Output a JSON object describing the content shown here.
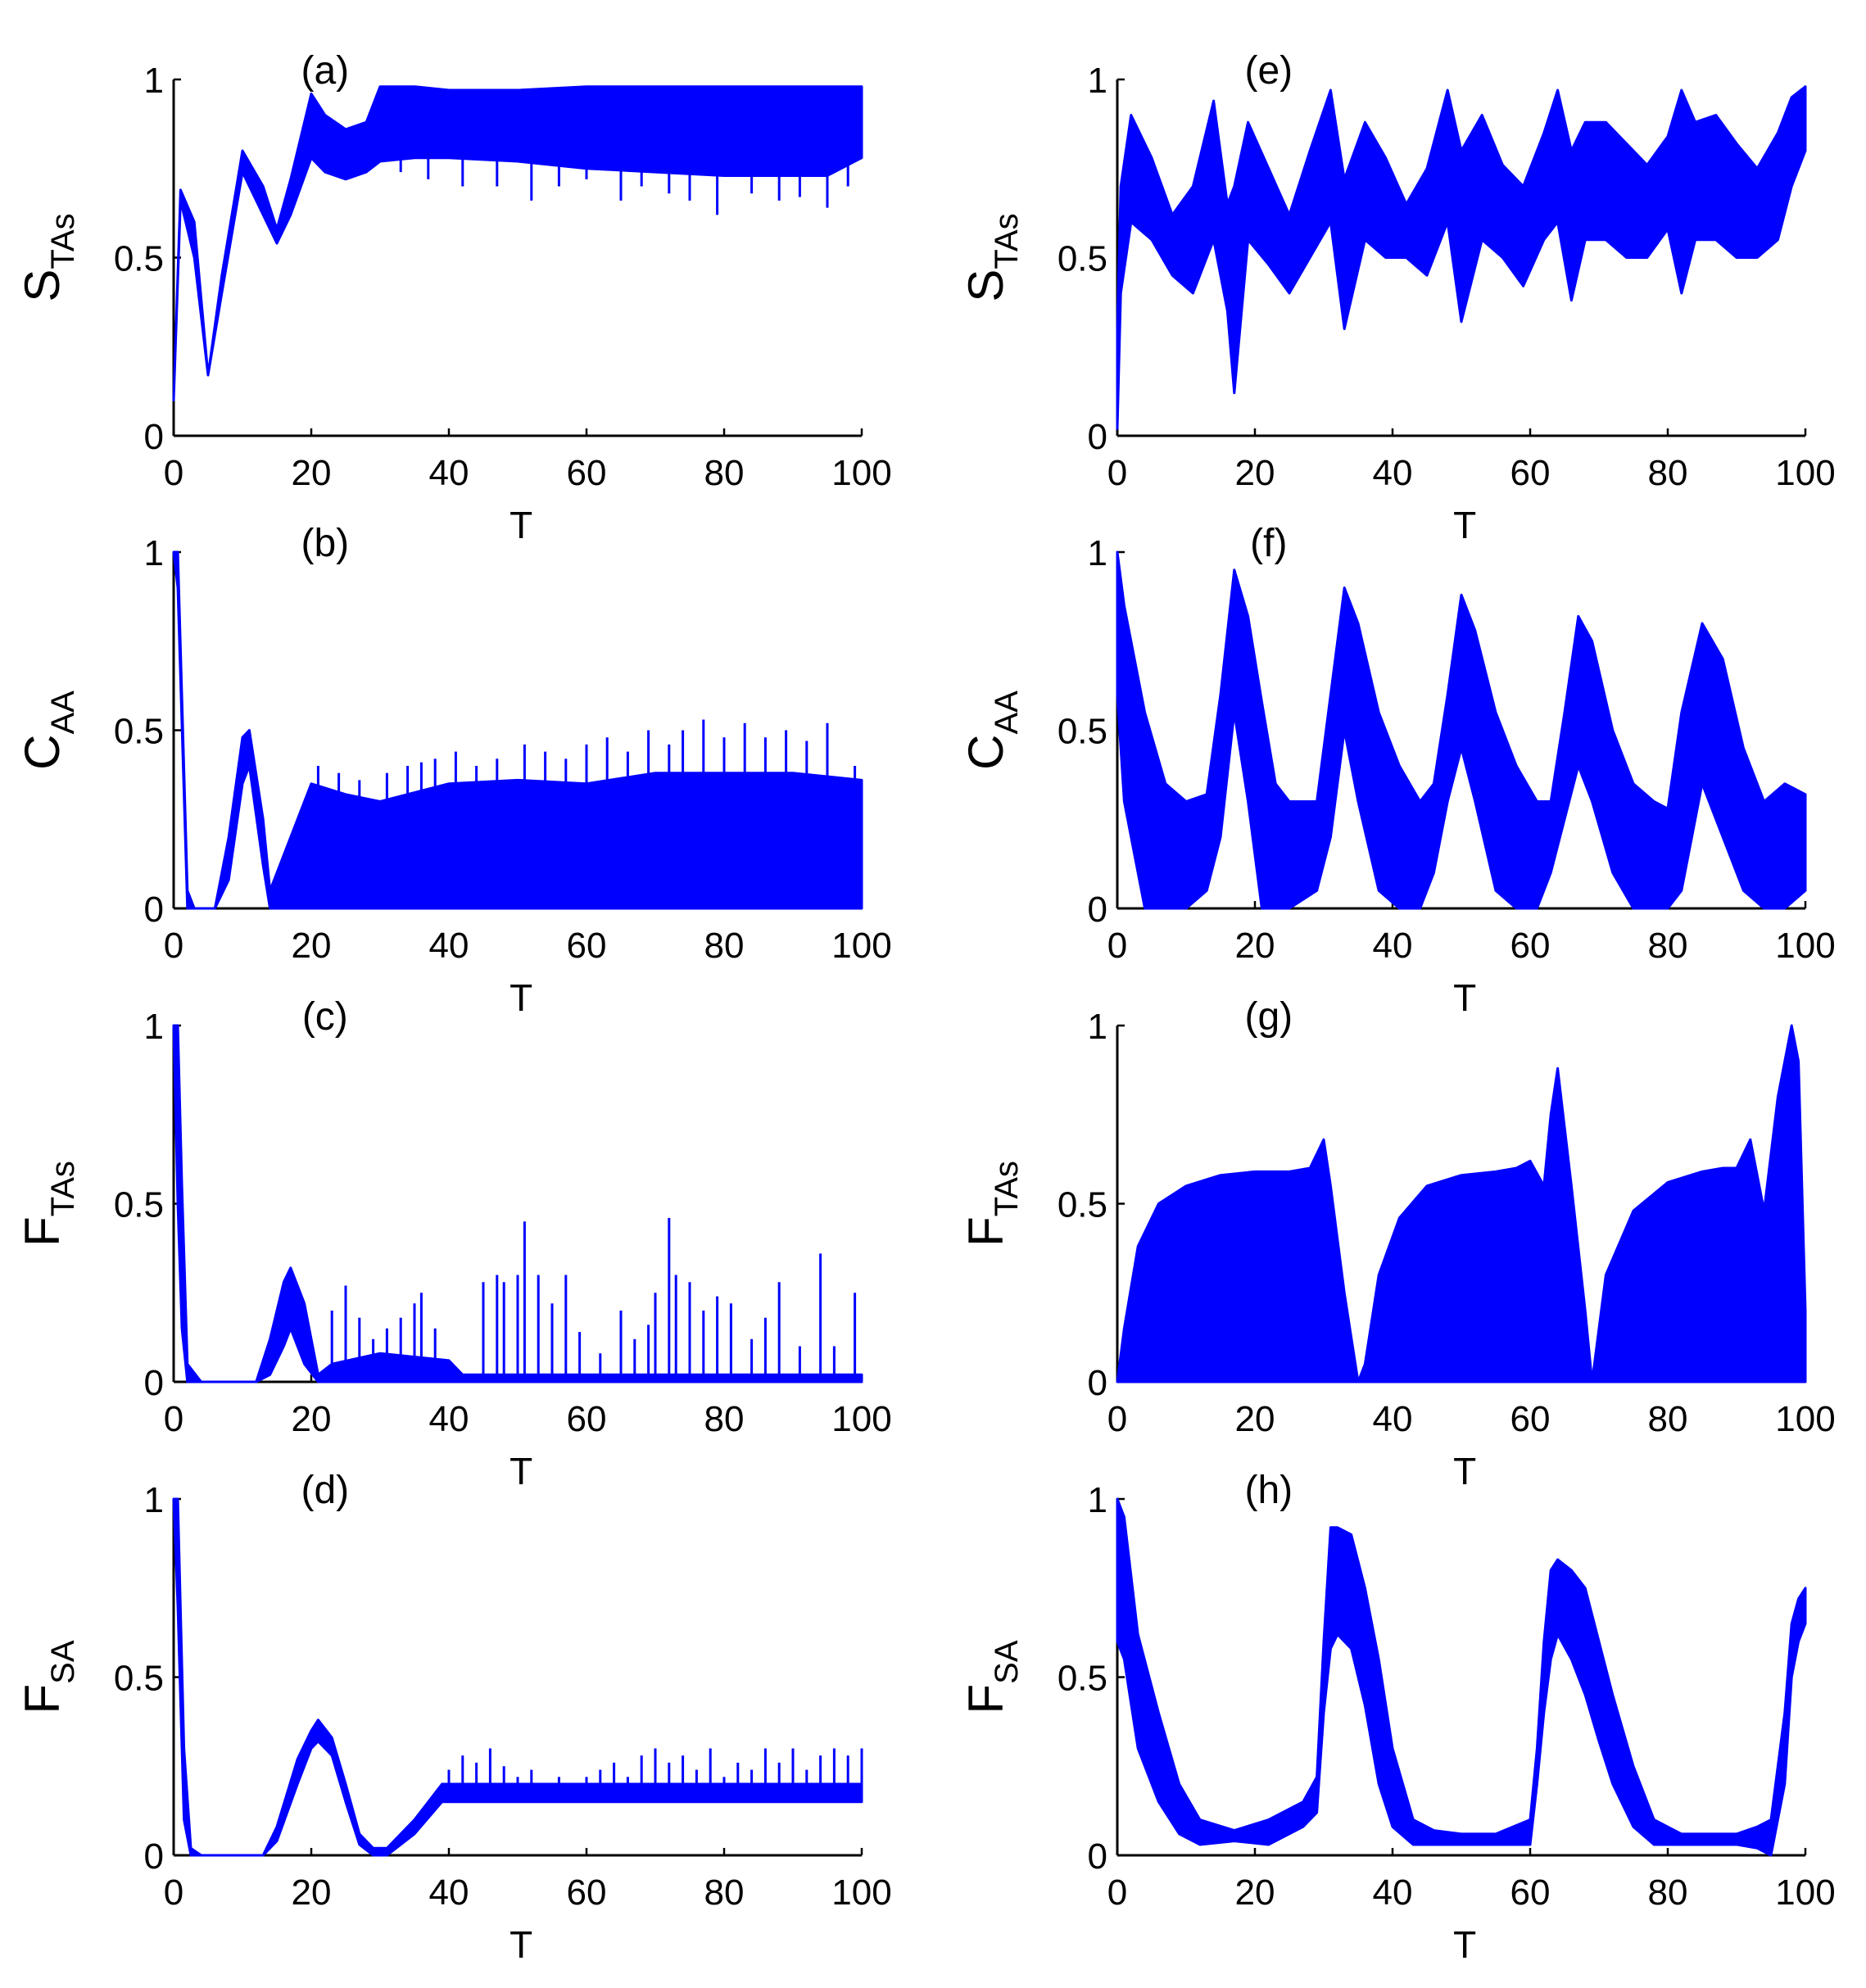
{
  "chart_data": [
    {
      "panel": "(a)",
      "type": "line",
      "ylabel": "S",
      "ylabel_sub": "TAs",
      "xlabel": "T",
      "xlim": [
        0,
        100
      ],
      "ylim": [
        0,
        1
      ],
      "xticks": [
        "0",
        "20",
        "40",
        "60",
        "80",
        "100"
      ],
      "yticks": [
        "0",
        "0.5",
        "1"
      ],
      "color": "#0000ff",
      "band": {
        "x": [
          0,
          1,
          3,
          5,
          7,
          10,
          13,
          15,
          17,
          20,
          22,
          25,
          28,
          30,
          35,
          40,
          50,
          60,
          70,
          80,
          90,
          95,
          100
        ],
        "lower": [
          0.1,
          0.66,
          0.5,
          0.17,
          0.4,
          0.74,
          0.62,
          0.54,
          0.62,
          0.78,
          0.74,
          0.72,
          0.74,
          0.77,
          0.78,
          0.78,
          0.77,
          0.75,
          0.74,
          0.73,
          0.73,
          0.73,
          0.78
        ],
        "upper": [
          0.1,
          0.69,
          0.6,
          0.17,
          0.45,
          0.8,
          0.7,
          0.58,
          0.72,
          0.96,
          0.9,
          0.86,
          0.88,
          0.98,
          0.98,
          0.97,
          0.97,
          0.98,
          0.98,
          0.98,
          0.98,
          0.98,
          0.98
        ]
      },
      "spikes": {
        "x": [
          33,
          37,
          42,
          47,
          52,
          56,
          60,
          65,
          68,
          72,
          75,
          79,
          84,
          88,
          91,
          95,
          98
        ],
        "y": [
          0.74,
          0.72,
          0.7,
          0.7,
          0.66,
          0.7,
          0.72,
          0.66,
          0.7,
          0.68,
          0.66,
          0.62,
          0.68,
          0.66,
          0.67,
          0.64,
          0.7
        ]
      }
    },
    {
      "panel": "(b)",
      "type": "line",
      "ylabel": "C",
      "ylabel_sub": "AA",
      "xlabel": "T",
      "xlim": [
        0,
        100
      ],
      "ylim": [
        0,
        1
      ],
      "xticks": [
        "0",
        "20",
        "40",
        "60",
        "80",
        "100"
      ],
      "yticks": [
        "0",
        "0.5",
        "1"
      ],
      "color": "#0000ff",
      "band": {
        "x": [
          0,
          0.6,
          2,
          3,
          6,
          8,
          10,
          11,
          13,
          14,
          16,
          20,
          25,
          30,
          40,
          50,
          60,
          70,
          80,
          90,
          100
        ],
        "lower": [
          1.0,
          0.9,
          0.0,
          0.0,
          0.0,
          0.08,
          0.35,
          0.4,
          0.12,
          0.0,
          0.0,
          0.0,
          0.0,
          0.0,
          0.0,
          0.0,
          0.0,
          0.0,
          0.0,
          0.0,
          0.0
        ],
        "upper": [
          1.0,
          1.0,
          0.05,
          0.0,
          0.0,
          0.2,
          0.48,
          0.5,
          0.25,
          0.05,
          0.15,
          0.35,
          0.32,
          0.3,
          0.35,
          0.36,
          0.35,
          0.38,
          0.38,
          0.38,
          0.36
        ]
      },
      "spikes": {
        "x": [
          21,
          24,
          27,
          31,
          34,
          36,
          38,
          41,
          44,
          47,
          51,
          54,
          57,
          60,
          63,
          66,
          69,
          72,
          74,
          77,
          80,
          83,
          86,
          89,
          92,
          95,
          99
        ],
        "y": [
          0.4,
          0.38,
          0.36,
          0.38,
          0.4,
          0.41,
          0.42,
          0.44,
          0.4,
          0.42,
          0.46,
          0.44,
          0.42,
          0.46,
          0.48,
          0.44,
          0.5,
          0.46,
          0.5,
          0.53,
          0.48,
          0.52,
          0.48,
          0.5,
          0.47,
          0.52,
          0.4
        ]
      }
    },
    {
      "panel": "(c)",
      "type": "line",
      "ylabel": "F",
      "ylabel_sub": "TAs",
      "xlabel": "T",
      "xlim": [
        0,
        100
      ],
      "ylim": [
        0,
        1
      ],
      "xticks": [
        "0",
        "20",
        "40",
        "60",
        "80",
        "100"
      ],
      "yticks": [
        "0",
        "0.5",
        "1"
      ],
      "color": "#0000ff",
      "band": {
        "x": [
          0,
          0.6,
          1.2,
          2,
          4,
          12,
          14,
          16,
          17,
          19,
          21,
          23,
          30,
          40,
          42,
          100
        ],
        "lower": [
          1.0,
          0.5,
          0.15,
          0.0,
          0.0,
          0.0,
          0.02,
          0.1,
          0.15,
          0.05,
          0.0,
          0.0,
          0.0,
          0.0,
          0.0,
          0.0
        ],
        "upper": [
          1.0,
          1.0,
          0.55,
          0.05,
          0.0,
          0.0,
          0.12,
          0.28,
          0.32,
          0.22,
          0.02,
          0.05,
          0.08,
          0.06,
          0.02,
          0.02
        ]
      },
      "spikes": {
        "x": [
          23,
          25,
          27,
          29,
          31,
          33,
          35,
          36,
          38,
          45,
          47,
          48,
          50,
          51,
          53,
          55,
          57,
          59,
          62,
          65,
          67,
          69,
          70,
          72,
          73,
          75,
          77,
          79,
          81,
          84,
          86,
          88,
          91,
          94,
          96,
          99
        ],
        "y": [
          0.2,
          0.27,
          0.18,
          0.12,
          0.15,
          0.18,
          0.22,
          0.25,
          0.15,
          0.28,
          0.3,
          0.28,
          0.3,
          0.45,
          0.3,
          0.22,
          0.3,
          0.14,
          0.08,
          0.2,
          0.12,
          0.16,
          0.25,
          0.46,
          0.3,
          0.28,
          0.2,
          0.24,
          0.22,
          0.12,
          0.18,
          0.28,
          0.1,
          0.36,
          0.1,
          0.25
        ]
      }
    },
    {
      "panel": "(d)",
      "type": "line",
      "ylabel": "F",
      "ylabel_sub": "SA",
      "xlabel": "T",
      "xlim": [
        0,
        100
      ],
      "ylim": [
        0,
        1
      ],
      "xticks": [
        "0",
        "20",
        "40",
        "60",
        "80",
        "100"
      ],
      "yticks": [
        "0",
        "0.5",
        "1"
      ],
      "color": "#0000ff",
      "band": {
        "x": [
          0,
          0.6,
          1.5,
          2.5,
          4,
          13,
          15,
          18,
          20,
          21,
          23,
          25,
          27,
          29,
          31,
          35,
          39,
          100
        ],
        "lower": [
          1.0,
          0.7,
          0.1,
          0.0,
          0.0,
          0.0,
          0.04,
          0.2,
          0.3,
          0.32,
          0.28,
          0.15,
          0.03,
          0.0,
          0.0,
          0.06,
          0.15,
          0.15
        ],
        "upper": [
          1.0,
          1.0,
          0.3,
          0.02,
          0.0,
          0.0,
          0.08,
          0.27,
          0.35,
          0.38,
          0.33,
          0.2,
          0.06,
          0.02,
          0.02,
          0.1,
          0.2,
          0.2
        ]
      },
      "spikes": {
        "x": [
          40,
          42,
          44,
          46,
          48,
          50,
          52,
          54,
          56,
          58,
          60,
          62,
          64,
          66,
          68,
          70,
          72,
          74,
          76,
          78,
          80,
          82,
          84,
          86,
          88,
          90,
          92,
          94,
          96,
          98,
          100
        ],
        "y": [
          0.24,
          0.28,
          0.26,
          0.3,
          0.25,
          0.22,
          0.24,
          0.2,
          0.22,
          0.18,
          0.22,
          0.24,
          0.26,
          0.22,
          0.28,
          0.3,
          0.26,
          0.28,
          0.24,
          0.3,
          0.22,
          0.26,
          0.24,
          0.3,
          0.26,
          0.3,
          0.24,
          0.28,
          0.3,
          0.28,
          0.3
        ]
      }
    },
    {
      "panel": "(e)",
      "type": "line",
      "ylabel": "S",
      "ylabel_sub": "TAs",
      "xlabel": "T",
      "xlim": [
        0,
        100
      ],
      "ylim": [
        0,
        1
      ],
      "xticks": [
        "0",
        "20",
        "40",
        "60",
        "80",
        "100"
      ],
      "yticks": [
        "0",
        "0.5",
        "1"
      ],
      "color": "#0000ff",
      "band": {
        "x": [
          0,
          0.5,
          2,
          5,
          8,
          11,
          14,
          16,
          17,
          19,
          22,
          25,
          28,
          31,
          33,
          36,
          39,
          42,
          45,
          48,
          50,
          53,
          56,
          59,
          62,
          64,
          66,
          68,
          71,
          74,
          77,
          80,
          82,
          84,
          87,
          90,
          93,
          96,
          98,
          100
        ],
        "lower": [
          0.02,
          0.4,
          0.6,
          0.55,
          0.45,
          0.4,
          0.55,
          0.35,
          0.12,
          0.55,
          0.48,
          0.4,
          0.5,
          0.6,
          0.3,
          0.55,
          0.5,
          0.5,
          0.45,
          0.6,
          0.32,
          0.55,
          0.5,
          0.42,
          0.55,
          0.6,
          0.38,
          0.55,
          0.55,
          0.5,
          0.5,
          0.58,
          0.4,
          0.55,
          0.55,
          0.5,
          0.5,
          0.55,
          0.7,
          0.8
        ],
        "upper": [
          0.3,
          0.7,
          0.9,
          0.78,
          0.62,
          0.7,
          0.94,
          0.65,
          0.7,
          0.88,
          0.75,
          0.62,
          0.8,
          0.97,
          0.72,
          0.88,
          0.78,
          0.65,
          0.75,
          0.97,
          0.8,
          0.9,
          0.76,
          0.7,
          0.85,
          0.97,
          0.8,
          0.88,
          0.88,
          0.82,
          0.76,
          0.84,
          0.97,
          0.88,
          0.9,
          0.82,
          0.75,
          0.85,
          0.95,
          0.98
        ]
      },
      "spikes": {
        "x": [],
        "y": []
      }
    },
    {
      "panel": "(f)",
      "type": "line",
      "ylabel": "C",
      "ylabel_sub": "AA",
      "xlabel": "T",
      "xlim": [
        0,
        100
      ],
      "ylim": [
        0,
        1
      ],
      "xticks": [
        "0",
        "20",
        "40",
        "60",
        "80",
        "100"
      ],
      "yticks": [
        "0",
        "0.5",
        "1"
      ],
      "color": "#0000ff",
      "band": {
        "x": [
          0,
          1,
          4,
          7,
          10,
          13,
          15,
          17,
          19,
          21,
          23,
          25,
          29,
          31,
          33,
          35,
          38,
          41,
          44,
          46,
          48,
          50,
          52,
          55,
          58,
          61,
          63,
          65,
          67,
          69,
          72,
          75,
          78,
          80,
          82,
          85,
          88,
          91,
          94,
          97,
          100
        ],
        "lower": [
          0.6,
          0.3,
          0.0,
          0.0,
          0.0,
          0.05,
          0.2,
          0.55,
          0.3,
          0.0,
          0.0,
          0.0,
          0.05,
          0.2,
          0.5,
          0.3,
          0.05,
          0.0,
          0.0,
          0.1,
          0.3,
          0.45,
          0.3,
          0.05,
          0.0,
          0.0,
          0.1,
          0.25,
          0.4,
          0.3,
          0.1,
          0.0,
          0.0,
          0.0,
          0.05,
          0.35,
          0.2,
          0.05,
          0.0,
          0.0,
          0.05
        ],
        "upper": [
          1.0,
          0.85,
          0.55,
          0.35,
          0.3,
          0.32,
          0.6,
          0.95,
          0.82,
          0.58,
          0.35,
          0.3,
          0.3,
          0.6,
          0.9,
          0.8,
          0.55,
          0.4,
          0.3,
          0.35,
          0.6,
          0.88,
          0.78,
          0.55,
          0.4,
          0.3,
          0.3,
          0.55,
          0.82,
          0.75,
          0.5,
          0.35,
          0.3,
          0.28,
          0.55,
          0.8,
          0.7,
          0.45,
          0.3,
          0.35,
          0.32
        ]
      },
      "spikes": {
        "x": [],
        "y": []
      }
    },
    {
      "panel": "(g)",
      "type": "line",
      "ylabel": "F",
      "ylabel_sub": "TAs",
      "xlabel": "T",
      "xlim": [
        0,
        100
      ],
      "ylim": [
        0,
        1
      ],
      "xticks": [
        "0",
        "20",
        "40",
        "60",
        "80",
        "100"
      ],
      "yticks": [
        "0",
        "0.5",
        "1"
      ],
      "color": "#0000ff",
      "band": {
        "x": [
          0,
          1,
          3,
          6,
          10,
          15,
          20,
          25,
          28,
          30,
          31,
          33,
          35,
          36,
          38,
          41,
          45,
          50,
          55,
          58,
          60,
          62,
          63,
          64,
          66,
          68,
          69,
          71,
          75,
          80,
          85,
          88,
          90,
          92,
          94,
          96,
          98,
          99,
          100
        ],
        "lower": [
          0.0,
          0.0,
          0.0,
          0.0,
          0.0,
          0.0,
          0.0,
          0.0,
          0.0,
          0.0,
          0.0,
          0.0,
          0.0,
          0.0,
          0.0,
          0.0,
          0.0,
          0.0,
          0.0,
          0.0,
          0.0,
          0.0,
          0.0,
          0.0,
          0.0,
          0.0,
          0.0,
          0.0,
          0.0,
          0.0,
          0.0,
          0.0,
          0.0,
          0.0,
          0.0,
          0.0,
          0.0,
          0.0,
          0.0
        ],
        "upper": [
          0.0,
          0.15,
          0.38,
          0.5,
          0.55,
          0.58,
          0.59,
          0.59,
          0.6,
          0.68,
          0.55,
          0.25,
          0.0,
          0.05,
          0.3,
          0.46,
          0.55,
          0.58,
          0.59,
          0.6,
          0.62,
          0.55,
          0.75,
          0.88,
          0.55,
          0.2,
          0.0,
          0.3,
          0.48,
          0.56,
          0.59,
          0.6,
          0.6,
          0.68,
          0.48,
          0.8,
          1.0,
          0.9,
          0.2
        ]
      },
      "spikes": {
        "x": [],
        "y": []
      }
    },
    {
      "panel": "(h)",
      "type": "line",
      "ylabel": "F",
      "ylabel_sub": "SA",
      "xlabel": "T",
      "xlim": [
        0,
        100
      ],
      "ylim": [
        0,
        1
      ],
      "xticks": [
        "0",
        "20",
        "40",
        "60",
        "80",
        "100"
      ],
      "yticks": [
        "0",
        "0.5",
        "1"
      ],
      "color": "#0000ff",
      "band": {
        "x": [
          0,
          1,
          3,
          6,
          9,
          12,
          17,
          22,
          27,
          29,
          30,
          31,
          32,
          34,
          36,
          38,
          40,
          43,
          46,
          50,
          55,
          60,
          61,
          62,
          63,
          64,
          66,
          68,
          70,
          72,
          75,
          78,
          82,
          86,
          90,
          93,
          95,
          97,
          98,
          99,
          100
        ],
        "lower": [
          0.6,
          0.55,
          0.3,
          0.15,
          0.06,
          0.03,
          0.04,
          0.03,
          0.08,
          0.12,
          0.4,
          0.58,
          0.62,
          0.58,
          0.42,
          0.2,
          0.08,
          0.03,
          0.03,
          0.03,
          0.03,
          0.03,
          0.2,
          0.4,
          0.55,
          0.62,
          0.55,
          0.45,
          0.32,
          0.2,
          0.08,
          0.03,
          0.03,
          0.03,
          0.03,
          0.02,
          0.0,
          0.2,
          0.5,
          0.6,
          0.65
        ],
        "upper": [
          1.0,
          0.95,
          0.62,
          0.4,
          0.2,
          0.1,
          0.07,
          0.1,
          0.15,
          0.22,
          0.6,
          0.92,
          0.92,
          0.9,
          0.75,
          0.55,
          0.3,
          0.1,
          0.07,
          0.06,
          0.06,
          0.1,
          0.3,
          0.6,
          0.8,
          0.83,
          0.8,
          0.75,
          0.6,
          0.45,
          0.25,
          0.1,
          0.06,
          0.06,
          0.06,
          0.08,
          0.1,
          0.4,
          0.65,
          0.72,
          0.75
        ]
      },
      "spikes": {
        "x": [],
        "y": []
      }
    }
  ]
}
